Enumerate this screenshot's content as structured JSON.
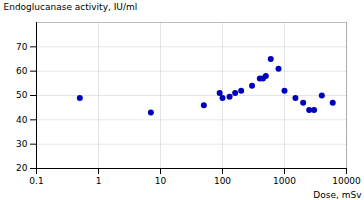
{
  "chart_data": {
    "type": "scatter",
    "xlabel": "Dose, mSv",
    "ylabel": "Endoglucanase activity, IU/ml",
    "x": [
      0.5,
      7,
      50,
      90,
      100,
      130,
      160,
      200,
      300,
      400,
      450,
      500,
      600,
      800,
      1000,
      1500,
      2000,
      2500,
      3000,
      4000,
      6000
    ],
    "values": [
      49,
      43,
      46,
      51,
      49,
      49.5,
      51,
      52,
      54,
      57,
      57,
      58,
      65,
      61,
      52,
      49,
      47,
      44,
      44,
      50,
      47
    ],
    "color": "#0000bb",
    "xlim": [
      0.1,
      10000
    ],
    "ylim": [
      20,
      80
    ],
    "xticks": [
      0.1,
      1,
      10,
      100,
      1000,
      10000
    ],
    "yticks": [
      20,
      30,
      40,
      50,
      60,
      70
    ],
    "log": "x",
    "grid": true
  }
}
